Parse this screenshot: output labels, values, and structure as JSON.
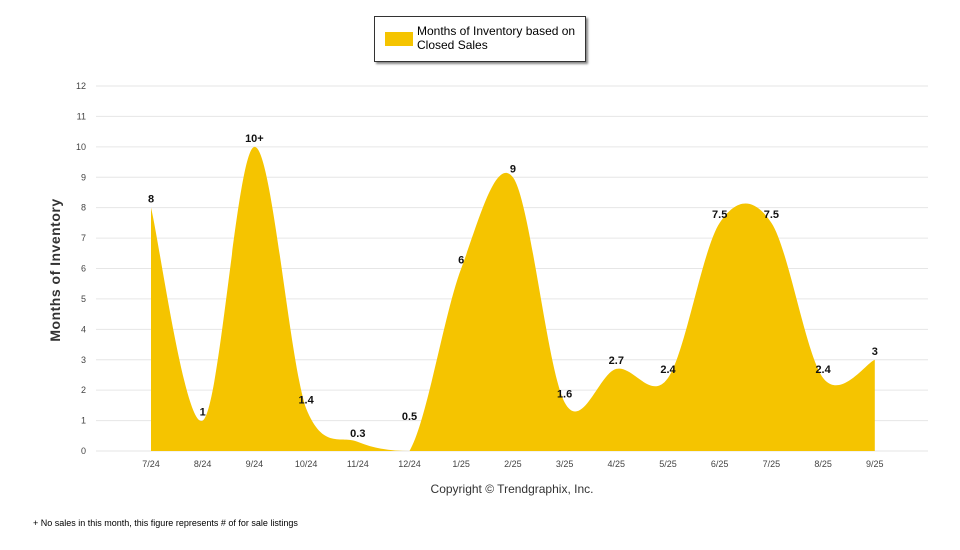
{
  "chart_data": {
    "type": "area",
    "categories": [
      "7/24",
      "8/24",
      "9/24",
      "10/24",
      "11/24",
      "12/24",
      "1/25",
      "2/25",
      "3/25",
      "4/25",
      "5/25",
      "6/25",
      "7/25",
      "8/25",
      "9/25"
    ],
    "series": [
      {
        "name": "Months of Inventory based on Closed Sales",
        "values": [
          8,
          1,
          10,
          1.4,
          0.3,
          0,
          6,
          9,
          1.6,
          2.7,
          2.4,
          7.5,
          7.5,
          2.4,
          3
        ]
      }
    ],
    "data_labels": [
      "8",
      "1",
      "10+",
      "1.4",
      "0.3",
      "",
      "6",
      "9",
      "1.6",
      "2.7",
      "2.4",
      "7.5",
      "7.5",
      "2.4",
      "3"
    ],
    "extra_labels": [
      {
        "after_index": 4,
        "text": "0.5"
      }
    ],
    "ylabel": "Months of Inventory",
    "xlabel": "",
    "ylim": [
      0,
      12
    ],
    "yticks": [
      0,
      1,
      2,
      3,
      4,
      5,
      6,
      7,
      8,
      9,
      10,
      11,
      12
    ],
    "grid": true,
    "legend": "top-center",
    "colors": {
      "fill": "#F5C400",
      "grid": "#e6e6e6",
      "axis_text": "#444444"
    }
  },
  "copyright": "Copyright © Trendgraphix, Inc.",
  "footnote": "+ No sales in this month, this figure represents # of for sale listings"
}
